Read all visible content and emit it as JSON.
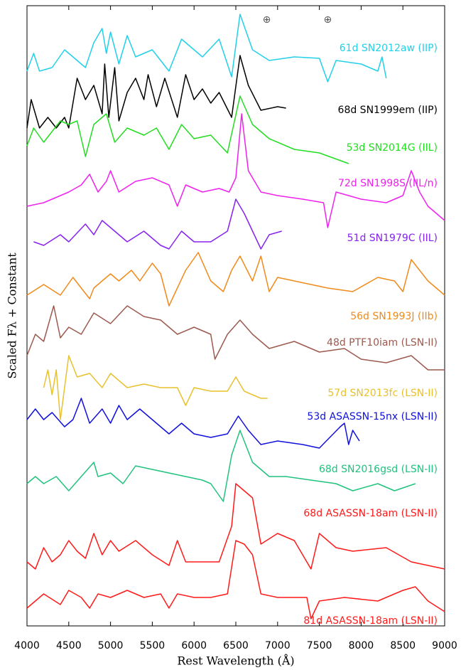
{
  "chart_data": {
    "type": "line",
    "xlabel": "Rest Wavelength (Å)",
    "ylabel": "Scaled Fλ + Constant",
    "xlim": [
      4000,
      9000
    ],
    "xticks": [
      4000,
      4500,
      5000,
      5500,
      6000,
      6500,
      7000,
      7500,
      8000,
      8500,
      9000
    ],
    "ylim": [
      0,
      872
    ],
    "annotations": [
      {
        "text": "⊕",
        "x": 6870
      },
      {
        "text": "⊕",
        "x": 7600
      }
    ],
    "series": [
      {
        "name": "61d SN2012aw (IIP)",
        "color": "#22d0e8",
        "x": [
          4000,
          4080,
          4150,
          4300,
          4450,
          4550,
          4700,
          4800,
          4900,
          4950,
          5000,
          5100,
          5200,
          5300,
          5500,
          5700,
          5850,
          6000,
          6100,
          6300,
          6450,
          6550,
          6700,
          6900,
          7200,
          7500,
          7600,
          7700,
          8000,
          8200,
          8250,
          8300
        ],
        "values": [
          780,
          805,
          780,
          785,
          810,
          800,
          785,
          820,
          840,
          805,
          835,
          790,
          830,
          800,
          810,
          780,
          825,
          810,
          800,
          825,
          772,
          860,
          810,
          795,
          800,
          798,
          765,
          795,
          790,
          780,
          800,
          770
        ]
      },
      {
        "name": "68d SN1999em (IIP)",
        "color": "#000000",
        "x": [
          4000,
          4050,
          4150,
          4250,
          4350,
          4450,
          4500,
          4600,
          4700,
          4800,
          4900,
          4930,
          4980,
          5050,
          5100,
          5200,
          5300,
          5400,
          5450,
          5550,
          5650,
          5800,
          5900,
          6000,
          6100,
          6200,
          6300,
          6450,
          6550,
          6650,
          6800,
          7000,
          7100
        ],
        "values": [
          700,
          740,
          700,
          715,
          700,
          715,
          700,
          770,
          740,
          760,
          720,
          790,
          715,
          785,
          710,
          750,
          770,
          740,
          775,
          730,
          770,
          715,
          775,
          740,
          755,
          735,
          750,
          715,
          802,
          760,
          725,
          730,
          728
        ]
      },
      {
        "name": "53d SN2014G (IIL)",
        "color": "#22dd22",
        "x": [
          4000,
          4080,
          4200,
          4400,
          4500,
          4600,
          4700,
          4800,
          4950,
          5050,
          5200,
          5400,
          5550,
          5700,
          5850,
          6000,
          6200,
          6400,
          6550,
          6700,
          6900,
          7200,
          7500,
          7850
        ],
        "values": [
          675,
          700,
          680,
          710,
          705,
          710,
          660,
          705,
          720,
          680,
          700,
          690,
          700,
          670,
          705,
          685,
          690,
          665,
          745,
          705,
          685,
          670,
          665,
          650
        ]
      },
      {
        "name": "72d SN1998S (IIL/n)",
        "color": "#ee22ee",
        "x": [
          4000,
          4200,
          4500,
          4650,
          4750,
          4850,
          4950,
          5000,
          5100,
          5300,
          5500,
          5700,
          5800,
          5900,
          6100,
          6300,
          6420,
          6500,
          6570,
          6650,
          6800,
          7000,
          7300,
          7550,
          7600,
          7700,
          8000,
          8300,
          8500,
          8600,
          8700,
          8800,
          9000
        ],
        "values": [
          590,
          595,
          610,
          620,
          635,
          610,
          625,
          640,
          610,
          625,
          630,
          620,
          590,
          620,
          610,
          615,
          610,
          630,
          720,
          640,
          610,
          605,
          600,
          595,
          560,
          610,
          600,
          595,
          605,
          640,
          610,
          590,
          570
        ]
      },
      {
        "name": "51d SN1979C (IIL)",
        "color": "#8822ee",
        "x": [
          4080,
          4200,
          4400,
          4500,
          4700,
          4800,
          4900,
          5000,
          5200,
          5400,
          5600,
          5700,
          5850,
          6000,
          6200,
          6400,
          6500,
          6600,
          6800,
          6900,
          7050
        ],
        "values": [
          540,
          535,
          550,
          540,
          565,
          550,
          570,
          560,
          540,
          555,
          535,
          530,
          555,
          540,
          540,
          555,
          600,
          580,
          530,
          550,
          555
        ]
      },
      {
        "name": "56d SN1993J (IIb)",
        "color": "#f08a1a",
        "x": [
          4000,
          4200,
          4400,
          4550,
          4650,
          4750,
          4800,
          4900,
          5000,
          5100,
          5250,
          5350,
          5500,
          5600,
          5700,
          5900,
          6050,
          6200,
          6350,
          6450,
          6550,
          6700,
          6800,
          6900,
          7000,
          7200,
          7400,
          7600,
          7900,
          8200,
          8400,
          8500,
          8600,
          8700,
          8800,
          9000
        ],
        "values": [
          465,
          480,
          465,
          490,
          475,
          460,
          475,
          485,
          495,
          485,
          500,
          485,
          510,
          495,
          450,
          500,
          525,
          485,
          470,
          500,
          520,
          485,
          520,
          470,
          490,
          485,
          480,
          475,
          470,
          490,
          485,
          470,
          515,
          500,
          485,
          465
        ]
      },
      {
        "name": "48d PTF10iam (LSN-II)",
        "color": "#9c5a4f",
        "x": [
          4000,
          4100,
          4200,
          4320,
          4400,
          4500,
          4650,
          4800,
          5000,
          5200,
          5400,
          5600,
          5800,
          6000,
          6200,
          6250,
          6400,
          6550,
          6700,
          6900,
          7200,
          7500,
          7800,
          8000,
          8300,
          8600,
          8800,
          9000
        ],
        "values": [
          380,
          410,
          400,
          450,
          405,
          420,
          410,
          440,
          425,
          450,
          435,
          430,
          410,
          420,
          410,
          375,
          410,
          430,
          410,
          390,
          400,
          385,
          390,
          375,
          370,
          380,
          360,
          360
        ]
      },
      {
        "name": "57d SN2013fc (LSN-II)",
        "color": "#e8c12e",
        "x": [
          4200,
          4250,
          4300,
          4350,
          4400,
          4450,
          4500,
          4600,
          4750,
          4900,
          5000,
          5200,
          5400,
          5600,
          5800,
          5900,
          6000,
          6200,
          6400,
          6500,
          6600,
          6800,
          6880
        ],
        "values": [
          335,
          360,
          325,
          360,
          290,
          335,
          380,
          350,
          355,
          335,
          355,
          335,
          340,
          335,
          335,
          310,
          335,
          330,
          330,
          350,
          330,
          320,
          320
        ]
      },
      {
        "name": "53d ASASSN-15nx (LSN-II)",
        "color": "#1010dd",
        "x": [
          4000,
          4100,
          4200,
          4300,
          4450,
          4550,
          4650,
          4750,
          4900,
          5000,
          5100,
          5200,
          5350,
          5500,
          5700,
          5850,
          6000,
          6200,
          6400,
          6530,
          6650,
          6800,
          7000,
          7300,
          7500,
          7750,
          7800,
          7850,
          7900,
          7980
        ],
        "values": [
          290,
          305,
          290,
          300,
          280,
          290,
          320,
          285,
          305,
          285,
          310,
          290,
          305,
          290,
          270,
          285,
          270,
          265,
          270,
          295,
          275,
          255,
          260,
          255,
          250,
          280,
          285,
          255,
          275,
          260
        ]
      },
      {
        "name": "68d SN2016gsd (LSN-II)",
        "color": "#20c27e",
        "x": [
          4000,
          4100,
          4200,
          4350,
          4500,
          4650,
          4800,
          4850,
          5000,
          5150,
          5300,
          5500,
          5700,
          5900,
          6100,
          6200,
          6350,
          6450,
          6550,
          6700,
          6900,
          7100,
          7400,
          7700,
          7900,
          8200,
          8400,
          8650
        ],
        "values": [
          200,
          210,
          200,
          210,
          190,
          210,
          230,
          210,
          215,
          200,
          225,
          220,
          215,
          210,
          205,
          200,
          175,
          240,
          275,
          230,
          210,
          210,
          205,
          200,
          190,
          200,
          190,
          200
        ]
      },
      {
        "name": "68d ASASSN-18am (LSN-II)",
        "color": "#ff1a1a",
        "x": [
          4000,
          4100,
          4200,
          4300,
          4400,
          4500,
          4600,
          4700,
          4800,
          4900,
          5000,
          5100,
          5300,
          5500,
          5700,
          5800,
          5900,
          6100,
          6300,
          6450,
          6500,
          6600,
          6700,
          6800,
          7000,
          7200,
          7400,
          7500,
          7700,
          7900,
          8300,
          8600,
          9000
        ],
        "values": [
          90,
          80,
          110,
          90,
          100,
          120,
          105,
          95,
          130,
          100,
          120,
          105,
          120,
          100,
          85,
          120,
          90,
          90,
          90,
          140,
          200,
          190,
          180,
          115,
          130,
          120,
          80,
          130,
          110,
          105,
          110,
          90,
          80
        ]
      },
      {
        "name": "81d ASASSN-18am (LSN-II)",
        "color": "#ff1a1a",
        "x": [
          4000,
          4200,
          4400,
          4500,
          4650,
          4750,
          4850,
          5000,
          5200,
          5400,
          5600,
          5700,
          5800,
          6000,
          6200,
          6400,
          6500,
          6600,
          6700,
          6800,
          7000,
          7200,
          7350,
          7400,
          7500,
          7800,
          8200,
          8500,
          8650,
          8800,
          9000
        ],
        "values": [
          25,
          45,
          30,
          50,
          40,
          25,
          45,
          40,
          50,
          40,
          45,
          25,
          45,
          40,
          40,
          45,
          120,
          115,
          100,
          45,
          40,
          40,
          40,
          10,
          35,
          40,
          35,
          50,
          55,
          35,
          20
        ]
      }
    ]
  }
}
